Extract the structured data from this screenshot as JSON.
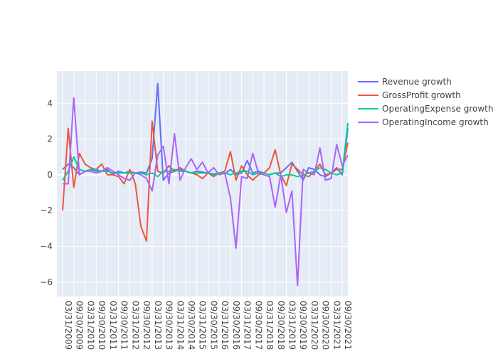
{
  "chart_data": {
    "type": "line",
    "title": "",
    "xlabel": "",
    "ylabel": "",
    "ylim": [
      -6.8,
      5.8
    ],
    "y_ticks": [
      4,
      2,
      0,
      -2,
      -4,
      -6
    ],
    "y_tick_labels": [
      "4",
      "2",
      "0",
      "−2",
      "−4",
      "−6"
    ],
    "grid": true,
    "legend_position": "top-right",
    "x_tick_labels": [
      "03/31/2009",
      "09/30/2009",
      "03/31/2010",
      "09/30/2010",
      "03/31/2011",
      "09/30/2011",
      "03/31/2012",
      "09/30/2012",
      "03/31/2013",
      "09/30/2013",
      "03/31/2014",
      "09/30/2014",
      "03/31/2015",
      "09/30/2015",
      "03/31/2016",
      "09/30/2016",
      "03/31/2017",
      "09/30/2017",
      "03/31/2018",
      "09/30/2018",
      "03/31/2019",
      "09/30/2019",
      "03/31/2020",
      "09/30/2020",
      "03/31/2021",
      "09/30/2021"
    ],
    "x": [
      "03/31/2009",
      "06/30/2009",
      "09/30/2009",
      "12/31/2009",
      "03/31/2010",
      "06/30/2010",
      "09/30/2010",
      "12/31/2010",
      "03/31/2011",
      "06/30/2011",
      "09/30/2011",
      "12/31/2011",
      "03/31/2012",
      "06/30/2012",
      "09/30/2012",
      "12/31/2012",
      "03/31/2013",
      "06/30/2013",
      "09/30/2013",
      "12/31/2013",
      "03/31/2014",
      "06/30/2014",
      "09/30/2014",
      "12/31/2014",
      "03/31/2015",
      "06/30/2015",
      "09/30/2015",
      "12/31/2015",
      "03/31/2016",
      "06/30/2016",
      "09/30/2016",
      "12/31/2016",
      "03/31/2017",
      "06/30/2017",
      "09/30/2017",
      "12/31/2017",
      "03/31/2018",
      "06/30/2018",
      "09/30/2018",
      "12/31/2018",
      "03/31/2019",
      "06/30/2019",
      "09/30/2019",
      "12/31/2019",
      "03/31/2020",
      "06/30/2020",
      "09/30/2020",
      "12/31/2020",
      "03/31/2021",
      "06/30/2021",
      "09/30/2021",
      "12/31/2021"
    ],
    "series": [
      {
        "name": "Revenue growth",
        "color": "#636efa",
        "values": [
          0.3,
          0.6,
          0.4,
          0.0,
          0.2,
          0.3,
          0.2,
          0.2,
          0.3,
          0.0,
          0.2,
          0.1,
          0.2,
          0.1,
          0.15,
          0.1,
          0.9,
          5.1,
          -0.3,
          0.1,
          0.2,
          0.3,
          0.2,
          0.1,
          0.2,
          0.15,
          0.1,
          0.05,
          0.1,
          0.05,
          0.3,
          0.0,
          0.1,
          0.8,
          0.1,
          0.2,
          0.1,
          0.0,
          0.1,
          0.1,
          0.4,
          0.7,
          0.2,
          -0.3,
          0.4,
          0.3,
          0.0,
          -0.1,
          0.1,
          0.4,
          0.0,
          2.6
        ]
      },
      {
        "name": "GrossProfit growth",
        "color": "#ef553b",
        "values": [
          -2.0,
          2.6,
          -0.7,
          1.2,
          0.6,
          0.4,
          0.3,
          0.6,
          0.0,
          0.0,
          -0.1,
          -0.5,
          0.3,
          -0.5,
          -2.9,
          -3.7,
          3.0,
          0.2,
          0.1,
          0.5,
          0.2,
          0.4,
          0.2,
          0.1,
          0.0,
          -0.2,
          0.1,
          -0.1,
          0.1,
          0.2,
          1.3,
          -0.3,
          0.5,
          0.0,
          -0.3,
          0.0,
          0.1,
          0.4,
          1.4,
          0.0,
          -0.6,
          0.6,
          0.3,
          0.0,
          -0.1,
          0.2,
          0.6,
          0.0,
          0.1,
          0.3,
          0.3,
          1.8
        ]
      },
      {
        "name": "OperatingExpense growth",
        "color": "#00cc96",
        "values": [
          -0.3,
          0.2,
          1.0,
          0.3,
          0.2,
          0.3,
          0.3,
          0.2,
          0.2,
          0.1,
          0.1,
          0.1,
          0.1,
          0.1,
          0.1,
          0.0,
          0.1,
          -0.1,
          0.2,
          0.2,
          0.3,
          0.2,
          0.2,
          0.1,
          0.1,
          0.1,
          0.1,
          0.0,
          0.1,
          0.1,
          0.0,
          0.1,
          0.2,
          0.2,
          0.0,
          0.1,
          0.1,
          0.0,
          0.1,
          -0.1,
          0.0,
          0.0,
          -0.1,
          0.0,
          0.1,
          0.2,
          0.4,
          0.3,
          0.1,
          0.0,
          0.1,
          2.9
        ]
      },
      {
        "name": "OperatingIncome growth",
        "color": "#ab63fa",
        "values": [
          -0.5,
          -0.5,
          4.3,
          0.0,
          0.2,
          0.2,
          0.1,
          0.2,
          0.4,
          0.2,
          0.0,
          -0.2,
          -0.3,
          0.1,
          0.0,
          -0.2,
          -0.9,
          1.1,
          1.6,
          -0.5,
          2.3,
          -0.3,
          0.4,
          0.9,
          0.3,
          0.7,
          0.1,
          0.4,
          0.0,
          0.1,
          -1.3,
          -4.1,
          -0.1,
          -0.2,
          1.2,
          0.1,
          0.0,
          -0.1,
          -1.8,
          0.0,
          -2.1,
          -0.9,
          -6.2,
          0.3,
          0.1,
          0.0,
          1.5,
          -0.3,
          -0.2,
          1.7,
          0.5,
          1.1
        ]
      }
    ]
  }
}
